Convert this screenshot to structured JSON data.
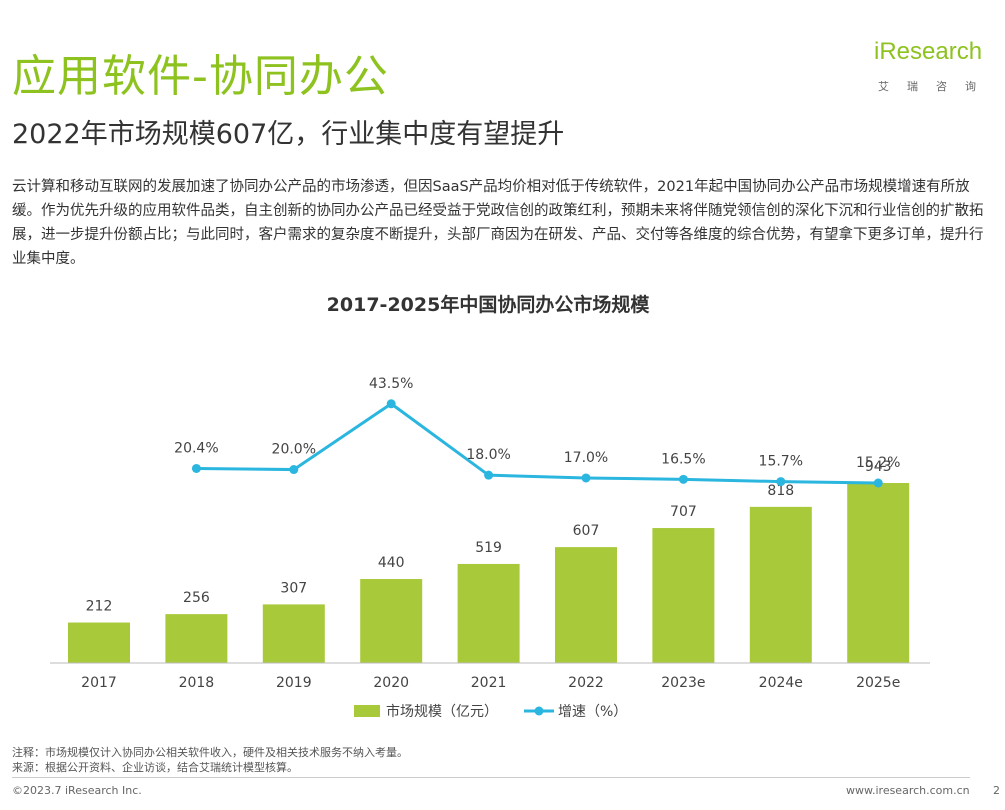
{
  "header": {
    "title": "应用软件-协同办公",
    "subtitle": "2022年市场规模607亿，行业集中度有望提升"
  },
  "logo": {
    "main": "iResearch",
    "sub": "艾瑞咨询",
    "brand_color": "#8dc21f"
  },
  "description": "云计算和移动互联网的发展加速了协同办公产品的市场渗透，但因SaaS产品均价相对低于传统软件，2021年起中国协同办公产品市场规模增速有所放缓。作为优先升级的应用软件品类，自主创新的协同办公产品已经受益于党政信创的政策红利，预期未来将伴随党领信创的深化下沉和行业信创的扩散拓展，进一步提升份额占比；与此同时，客户需求的复杂度不断提升，头部厂商因为在研发、产品、交付等各维度的综合优势，有望拿下更多订单，提升行业集中度。",
  "chart_data": {
    "type": "bar",
    "title": "2017-2025年中国协同办公市场规模",
    "categories": [
      "2017",
      "2018",
      "2019",
      "2020",
      "2021",
      "2022",
      "2023e",
      "2024e",
      "2025e"
    ],
    "series": [
      {
        "name": "市场规模（亿元）",
        "type": "bar",
        "color": "#a8c93a",
        "values": [
          212,
          256,
          307,
          440,
          519,
          607,
          707,
          818,
          943
        ],
        "labels": [
          "212",
          "256",
          "307",
          "440",
          "519",
          "607",
          "707",
          "818",
          "943"
        ]
      },
      {
        "name": "增速（%）",
        "type": "line",
        "color": "#2bb6e0",
        "values": [
          null,
          20.4,
          20.0,
          43.5,
          18.0,
          17.0,
          16.5,
          15.7,
          15.2
        ],
        "labels": [
          "",
          "20.4%",
          "20.0%",
          "43.5%",
          "18.0%",
          "17.0%",
          "16.5%",
          "15.7%",
          "15.2%"
        ]
      }
    ],
    "legend_position": "bottom",
    "grid": false
  },
  "notes": {
    "note": "注释：市场规模仅计入协同办公相关软件收入，硬件及相关技术服务不纳入考量。",
    "source": "来源：根据公开资料、企业访谈，结合艾瑞统计模型核算。"
  },
  "footer": {
    "copyright": "©2023.7 iResearch Inc.",
    "website": "www.iresearch.com.cn",
    "page": "2"
  }
}
